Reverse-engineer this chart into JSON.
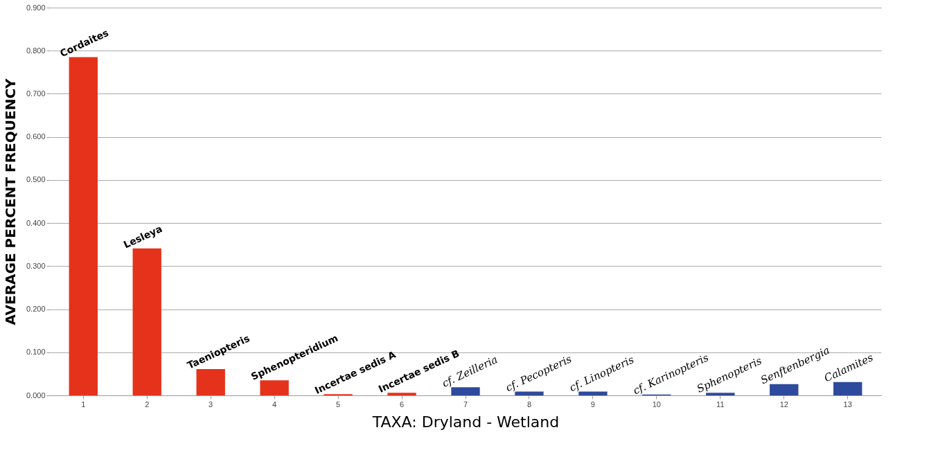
{
  "chart_data": {
    "type": "bar",
    "xlabel": "TAXA: Dryland - Wetland",
    "ylabel": "AVERAGE PERCENT FREQUENCY",
    "categories": [
      "1",
      "2",
      "3",
      "4",
      "5",
      "6",
      "7",
      "8",
      "9",
      "10",
      "11",
      "12",
      "13"
    ],
    "values": [
      0.785,
      0.341,
      0.061,
      0.035,
      0.003,
      0.006,
      0.019,
      0.009,
      0.009,
      0.002,
      0.006,
      0.026,
      0.031
    ],
    "colors": [
      "#e5331b",
      "#e5331b",
      "#e5331b",
      "#e5331b",
      "#e5331b",
      "#e5331b",
      "#2e4a9c",
      "#2e4a9c",
      "#2e4a9c",
      "#2e4a9c",
      "#2e4a9c",
      "#2e4a9c",
      "#2e4a9c"
    ],
    "ylim": [
      0,
      0.9
    ],
    "yticks": [
      {
        "value": 0,
        "label": "0.000"
      },
      {
        "value": 0.1,
        "label": "0.100"
      },
      {
        "value": 0.2,
        "label": "0.200"
      },
      {
        "value": 0.3,
        "label": "0.300"
      },
      {
        "value": 0.4,
        "label": "0.400"
      },
      {
        "value": 0.5,
        "label": "0.500"
      },
      {
        "value": 0.6,
        "label": "0.600"
      },
      {
        "value": 0.7,
        "label": "0.700"
      },
      {
        "value": 0.8,
        "label": "0.800"
      },
      {
        "value": 0.9,
        "label": "0.900"
      }
    ],
    "grid": "y",
    "annotations": [
      {
        "text": "Cordaites",
        "x": "1",
        "y": 0.785
      },
      {
        "text": "Lesleya",
        "x": "2",
        "y": 0.341
      },
      {
        "text": "Taeniopteris",
        "x": "3",
        "y": 0.061
      },
      {
        "text": "Sphenopteridium",
        "x": "4",
        "y": 0.035
      },
      {
        "text": "Incertae sedis A",
        "x": "5",
        "y": 0.003
      },
      {
        "text": "Incertae sedis B",
        "x": "6",
        "y": 0.006
      },
      {
        "text": "cf. Zeilleria",
        "x": "7",
        "y": 0.019
      },
      {
        "text": "cf. Pecopteris",
        "x": "8",
        "y": 0.009
      },
      {
        "text": "cf. Linopteris",
        "x": "9",
        "y": 0.009
      },
      {
        "text": "cf. Karinopteris",
        "x": "10",
        "y": 0.002
      },
      {
        "text": "Sphenopteris",
        "x": "11",
        "y": 0.006
      },
      {
        "text": "Senftenbergia",
        "x": "12",
        "y": 0.026
      },
      {
        "text": "Calamites",
        "x": "13",
        "y": 0.031
      }
    ]
  }
}
